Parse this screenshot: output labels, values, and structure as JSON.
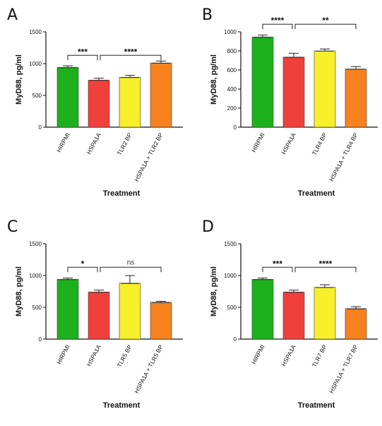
{
  "colors": {
    "bars": [
      "#1cb11c",
      "#f0403c",
      "#f7ef2a",
      "#f7821e"
    ],
    "axis": "#111111"
  },
  "chart_data": [
    {
      "type": "bar",
      "panel": "A",
      "categories": [
        "HIRPMI",
        "HSPA1A",
        "TLR2 BP",
        "HSPA1A + TLR2 BP"
      ],
      "values": [
        940,
        740,
        785,
        1010
      ],
      "errors": [
        25,
        30,
        30,
        30
      ],
      "xlabel": "Treatment",
      "ylabel": "MyD88, pg/ml",
      "ylim": [
        0,
        1500
      ],
      "yticks": [
        0,
        500,
        1000,
        1500
      ],
      "grid": false,
      "significance": [
        {
          "from": 0,
          "to": 1,
          "label": "***",
          "y": 1130
        },
        {
          "from": 1,
          "to": 3,
          "label": "****",
          "y": 1130
        }
      ]
    },
    {
      "type": "bar",
      "panel": "B",
      "categories": [
        "HIRPMI",
        "HSPA1A",
        "TLR4 BP",
        "HSPA1A + TLR4 BP"
      ],
      "values": [
        945,
        735,
        800,
        610
      ],
      "errors": [
        20,
        40,
        20,
        25
      ],
      "xlabel": "Treatment",
      "ylabel": "MyD88, pg/ml",
      "ylim": [
        0,
        1000
      ],
      "yticks": [
        0,
        200,
        400,
        600,
        800,
        1000
      ],
      "grid": false,
      "significance": [
        {
          "from": 0,
          "to": 1,
          "label": "****",
          "y": 1080
        },
        {
          "from": 1,
          "to": 3,
          "label": "**",
          "y": 1080
        }
      ]
    },
    {
      "type": "bar",
      "panel": "C",
      "categories": [
        "HIRPMI",
        "HSPA1A",
        "TLR5 BP",
        "HSPA1A + TLR5 BP"
      ],
      "values": [
        940,
        740,
        880,
        580
      ],
      "errors": [
        20,
        30,
        120,
        15
      ],
      "xlabel": "Treatment",
      "ylabel": "MyD88, pg/ml",
      "ylim": [
        0,
        1500
      ],
      "yticks": [
        0,
        500,
        1000,
        1500
      ],
      "grid": false,
      "significance": [
        {
          "from": 0,
          "to": 1,
          "label": "*",
          "y": 1130
        },
        {
          "from": 1,
          "to": 3,
          "label": "ns",
          "y": 1130
        }
      ]
    },
    {
      "type": "bar",
      "panel": "D",
      "categories": [
        "HIRPMI",
        "HSPA1A",
        "TLR7 BP",
        "HSPA1A + TLR7 BP"
      ],
      "values": [
        940,
        740,
        815,
        480
      ],
      "errors": [
        20,
        30,
        40,
        30
      ],
      "xlabel": "Treatment",
      "ylabel": "MyD88, pg/ml",
      "ylim": [
        0,
        1500
      ],
      "yticks": [
        0,
        500,
        1000,
        1500
      ],
      "grid": false,
      "significance": [
        {
          "from": 0,
          "to": 1,
          "label": "***",
          "y": 1130
        },
        {
          "from": 1,
          "to": 3,
          "label": "****",
          "y": 1130
        }
      ]
    }
  ]
}
